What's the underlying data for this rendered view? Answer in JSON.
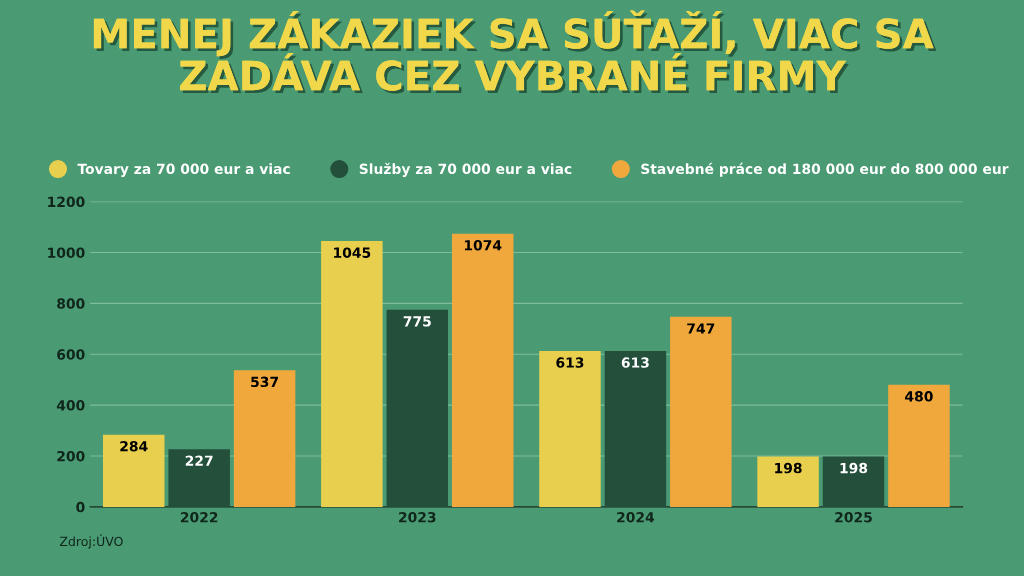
{
  "chart_data": {
    "type": "bar",
    "title": "MENEJ ZÁKAZIEK SA SÚŤAŽÍ, VIAC SA\nZADÁVA CEZ VYBRANÉ FIRMY",
    "categories": [
      "2022",
      "2023",
      "2024",
      "2025"
    ],
    "series": [
      {
        "name": "Tovary za 70 000 eur a viac",
        "color": "#e8d04e",
        "values": [
          284,
          1045,
          613,
          198
        ]
      },
      {
        "name": "Služby za 70 000 eur a viac",
        "color": "#234f3b",
        "values": [
          227,
          775,
          613,
          198
        ]
      },
      {
        "name": "Stavebné práce od 180 000 eur do 800 000 eur",
        "color": "#f0a83c",
        "values": [
          537,
          1074,
          747,
          480
        ]
      }
    ],
    "ylim": [
      0,
      1200
    ],
    "yticks": [
      0,
      200,
      400,
      600,
      800,
      1000,
      1200
    ],
    "grid": "y",
    "legend": "top",
    "data_labels": true,
    "annotations": [
      "Zdroj:ÚVO"
    ]
  }
}
